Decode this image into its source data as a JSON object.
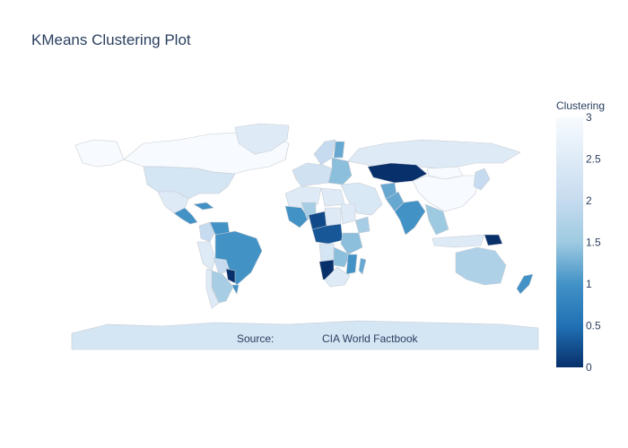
{
  "chart_data": {
    "type": "choropleth",
    "title": "KMeans Clustering Plot",
    "colorbar": {
      "title": "Clustering",
      "range": [
        0,
        3
      ],
      "ticks": [
        "0",
        "0.5",
        "1",
        "1.5",
        "2",
        "2.5",
        "3"
      ],
      "colorscale": [
        [
          "0",
          "#08306b"
        ],
        [
          "0.5",
          "#2171b5"
        ],
        [
          "1",
          "#4292c6"
        ],
        [
          "1.5",
          "#9ecae1"
        ],
        [
          "2",
          "#c6dbef"
        ],
        [
          "2.5",
          "#deebf7"
        ],
        [
          "3",
          "#f7fbff"
        ]
      ]
    },
    "annotation": {
      "source_label": "Source:",
      "source_value": "CIA World Factbook"
    },
    "regions": [
      {
        "name": "Canada",
        "cluster": 3
      },
      {
        "name": "Alaska",
        "cluster": 3
      },
      {
        "name": "Greenland",
        "cluster": 2.5
      },
      {
        "name": "United States",
        "cluster": 2.3
      },
      {
        "name": "Mexico",
        "cluster": 2.5
      },
      {
        "name": "Central America",
        "cluster": 1
      },
      {
        "name": "Cuba",
        "cluster": 1
      },
      {
        "name": "Colombia",
        "cluster": 2
      },
      {
        "name": "Venezuela",
        "cluster": 1
      },
      {
        "name": "Peru",
        "cluster": 2.5
      },
      {
        "name": "Brazil",
        "cluster": 1
      },
      {
        "name": "Bolivia",
        "cluster": 2
      },
      {
        "name": "Paraguay",
        "cluster": 0
      },
      {
        "name": "Uruguay",
        "cluster": 1
      },
      {
        "name": "Argentina",
        "cluster": 1.6
      },
      {
        "name": "Chile",
        "cluster": 2.5
      },
      {
        "name": "Russia",
        "cluster": 2.5
      },
      {
        "name": "Scandinavia",
        "cluster": 2
      },
      {
        "name": "Finland",
        "cluster": 1.2
      },
      {
        "name": "Western Europe",
        "cluster": 2.2
      },
      {
        "name": "Eastern Europe",
        "cluster": 1.4
      },
      {
        "name": "Kazakhstan",
        "cluster": 0
      },
      {
        "name": "Mongolia",
        "cluster": 3
      },
      {
        "name": "China",
        "cluster": 3
      },
      {
        "name": "Middle East",
        "cluster": 2.4
      },
      {
        "name": "Afghanistan",
        "cluster": 1.2
      },
      {
        "name": "Pakistan",
        "cluster": 1.2
      },
      {
        "name": "India",
        "cluster": 1
      },
      {
        "name": "Southeast Asia",
        "cluster": 1.5
      },
      {
        "name": "Japan",
        "cluster": 2
      },
      {
        "name": "Indonesia",
        "cluster": 2.5
      },
      {
        "name": "Papua New Guinea",
        "cluster": 0
      },
      {
        "name": "Australia",
        "cluster": 1.7
      },
      {
        "name": "New Zealand",
        "cluster": 1
      },
      {
        "name": "North Africa",
        "cluster": 2.5
      },
      {
        "name": "Libya",
        "cluster": 2.5
      },
      {
        "name": "West Africa",
        "cluster": 1
      },
      {
        "name": "Mali",
        "cluster": 1.6
      },
      {
        "name": "Niger",
        "cluster": 0.2
      },
      {
        "name": "Chad",
        "cluster": 2.5
      },
      {
        "name": "Sudan",
        "cluster": 2.5
      },
      {
        "name": "Ethiopia",
        "cluster": 1.6
      },
      {
        "name": "Central Africa",
        "cluster": 0.3
      },
      {
        "name": "East Africa",
        "cluster": 1.4
      },
      {
        "name": "Angola",
        "cluster": 2.3
      },
      {
        "name": "Namibia",
        "cluster": 0
      },
      {
        "name": "Zambia",
        "cluster": 1.4
      },
      {
        "name": "Mozambique",
        "cluster": 1
      },
      {
        "name": "South Africa",
        "cluster": 2.5
      },
      {
        "name": "Madagascar",
        "cluster": 1.2
      },
      {
        "name": "Antarctica",
        "cluster": 2.3
      }
    ]
  }
}
